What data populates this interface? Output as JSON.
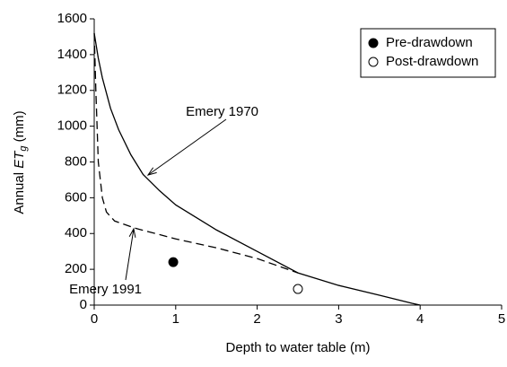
{
  "chart_data": {
    "type": "line",
    "xlabel": "Depth to water table (m)",
    "ylabel": {
      "prefix": "Annual ",
      "italic": "ET",
      "subscript": "g",
      "suffix": " (mm)"
    },
    "xlim": [
      0,
      5
    ],
    "xticks": [
      0,
      1,
      2,
      3,
      4,
      5
    ],
    "ylim": [
      0,
      1600
    ],
    "yticks": [
      0,
      200,
      400,
      600,
      800,
      1000,
      1200,
      1400,
      1600
    ],
    "legend": "upper right",
    "series": [
      {
        "name": "Emery 1970",
        "style": "solid",
        "color": "#000000",
        "x": [
          0,
          0.05,
          0.1,
          0.2,
          0.3,
          0.45,
          0.6,
          0.8,
          1.0,
          1.5,
          2.0,
          2.5,
          3.0,
          3.5,
          3.9,
          4.0
        ],
        "values": [
          1520,
          1380,
          1270,
          1100,
          980,
          840,
          730,
          640,
          560,
          420,
          300,
          180,
          110,
          55,
          10,
          0
        ]
      },
      {
        "name": "Emery 1991",
        "style": "dashed",
        "color": "#000000",
        "x": [
          0,
          0.02,
          0.05,
          0.1,
          0.15,
          0.25,
          0.5,
          1.0,
          1.5,
          2.0,
          2.5
        ],
        "values": [
          1520,
          1200,
          800,
          600,
          520,
          470,
          430,
          370,
          320,
          260,
          180
        ]
      },
      {
        "name": "Pre-drawdown",
        "style": "filled-circle",
        "color": "#000000",
        "x": [
          0.97
        ],
        "values": [
          240
        ]
      },
      {
        "name": "Post-drawdown",
        "style": "open-circle",
        "color": "#000000",
        "x": [
          2.5
        ],
        "values": [
          90
        ]
      }
    ]
  }
}
